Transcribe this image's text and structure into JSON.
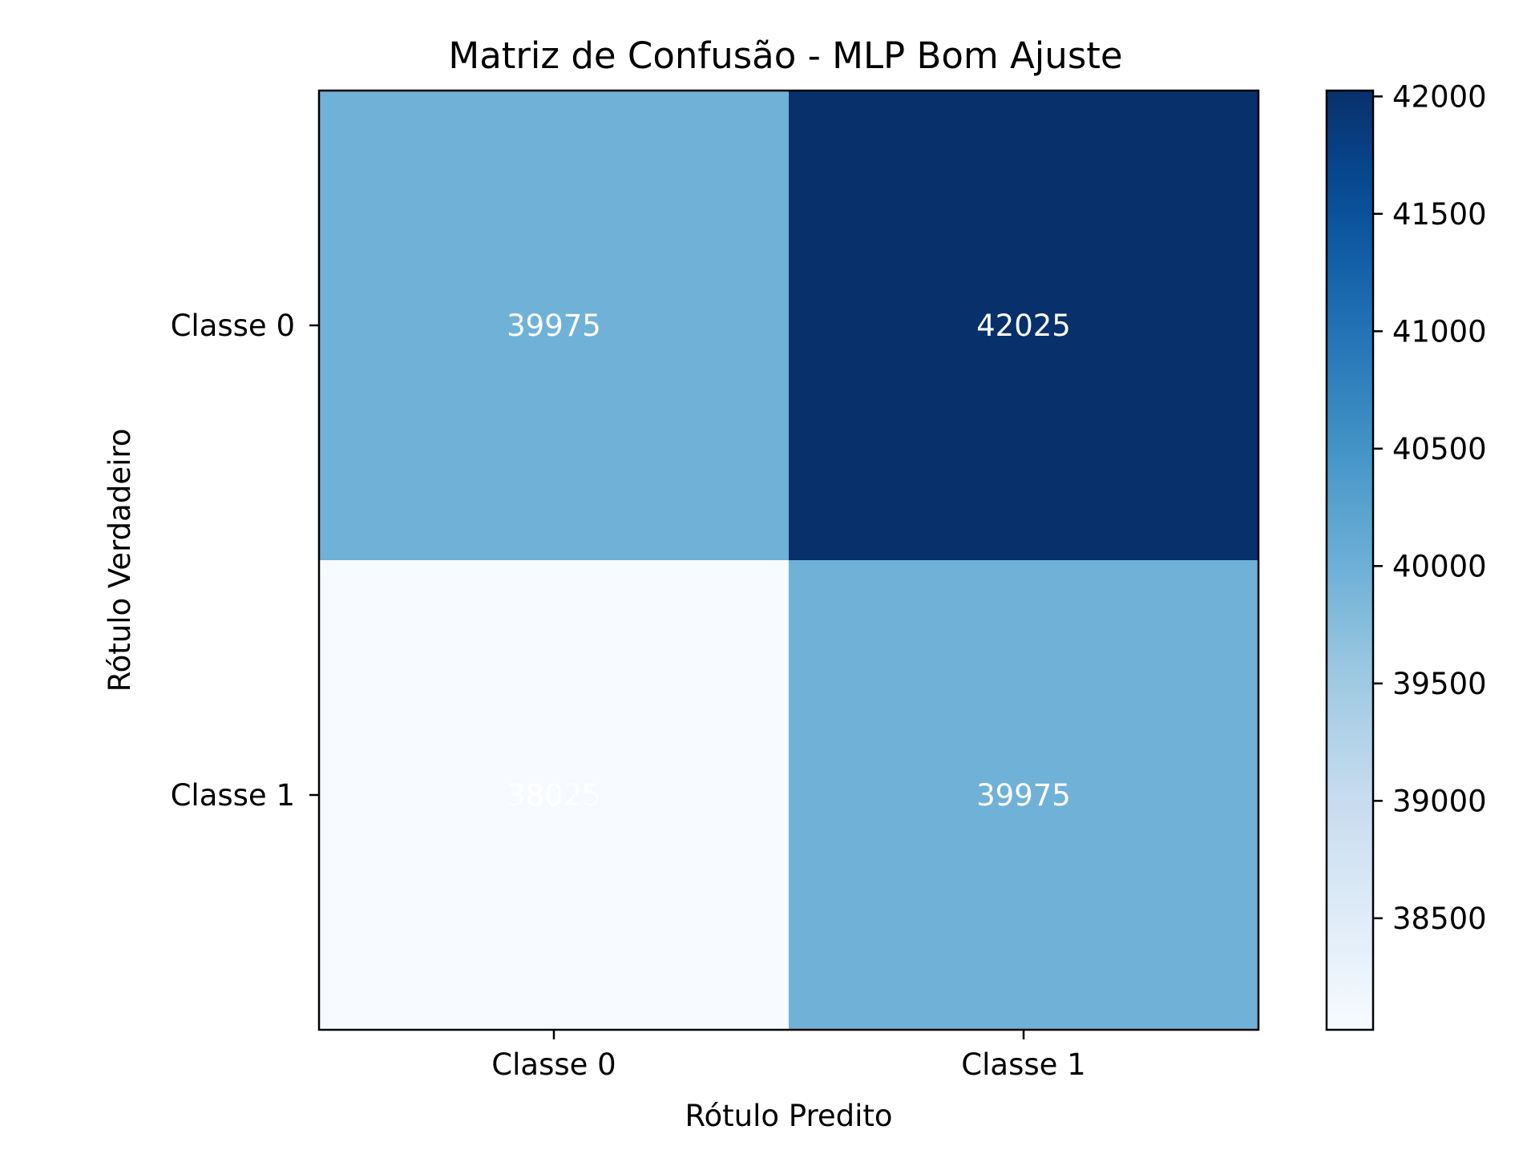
{
  "chart_data": {
    "type": "heatmap",
    "title": "Matriz de Confusão - MLP Bom Ajuste",
    "xlabel": "Rótulo Predito",
    "ylabel": "Rótulo Verdadeiro",
    "x_categories": [
      "Classe 0",
      "Classe 1"
    ],
    "y_categories": [
      "Classe 0",
      "Classe 1"
    ],
    "matrix": [
      [
        39975,
        42025
      ],
      [
        38025,
        39975
      ]
    ],
    "colormap": "Blues",
    "colorbar": {
      "vmin": 38025,
      "vmax": 42025,
      "ticks": [
        38500,
        39000,
        39500,
        40000,
        40500,
        41000,
        41500,
        42000
      ],
      "tick_labels": [
        "38500",
        "39000",
        "39500",
        "40000",
        "40500",
        "41000",
        "41500",
        "42000"
      ]
    },
    "annotation_color": "#ffffff",
    "grid": false
  }
}
